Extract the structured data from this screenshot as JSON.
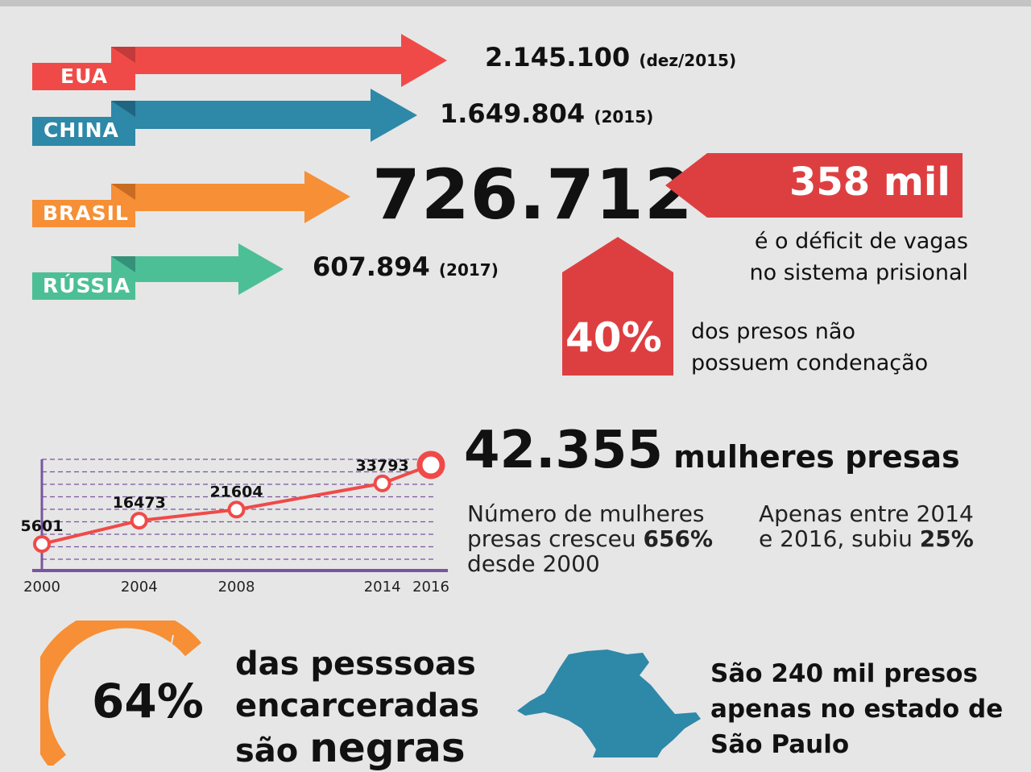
{
  "countries": [
    {
      "name": "EUA",
      "value": "2.145.100",
      "note": "(dez/2015)",
      "color": "#f04a48"
    },
    {
      "name": "CHINA",
      "value": "1.649.804",
      "note": "(2015)",
      "color": "#2e88a8"
    },
    {
      "name": "BRASIL",
      "value": "726.712",
      "note": "",
      "color": "#f68f35"
    },
    {
      "name": "RÚSSIA",
      "value": "607.894",
      "note": "(2017)",
      "color": "#4dbf97"
    }
  ],
  "deficit": {
    "value": "358 mil",
    "line1": "é o déficit de vagas",
    "line2": "no sistema prisional",
    "color": "#dd3f41"
  },
  "unconvicted": {
    "value": "40%",
    "line1": "dos presos não",
    "line2": "possuem condenação"
  },
  "women": {
    "number": "42.355",
    "label": "mulheres presas",
    "text1_a": "Número de mulheres",
    "text1_b": "presas cresceu",
    "text1_pct": "656%",
    "text1_c": "desde 2000",
    "text2_a": "Apenas entre 2014",
    "text2_b": "e 2016, subiu",
    "text2_pct": "25%"
  },
  "chart_data": {
    "type": "line",
    "x": [
      "2000",
      "2004",
      "2008",
      "2014",
      "2016"
    ],
    "values": [
      5601,
      16473,
      21604,
      33793,
      42355
    ],
    "point_labels": [
      "5601",
      "16473",
      "21604",
      "33793",
      ""
    ],
    "line_color": "#f04a48",
    "grid_color": "#7a55a0",
    "axis_color": "#7a55a0",
    "grid": true
  },
  "race": {
    "value": "64%",
    "line1": "das pesssoas",
    "line2": "encarceradas",
    "line3": "são",
    "line3_em": "negras",
    "ring_color": "#f68f35"
  },
  "saopaulo": {
    "line1_a": "São",
    "line1_b": "240 mil presos",
    "line2": "apenas no estado de",
    "line3": "São Paulo",
    "map_color": "#2e88a8"
  }
}
